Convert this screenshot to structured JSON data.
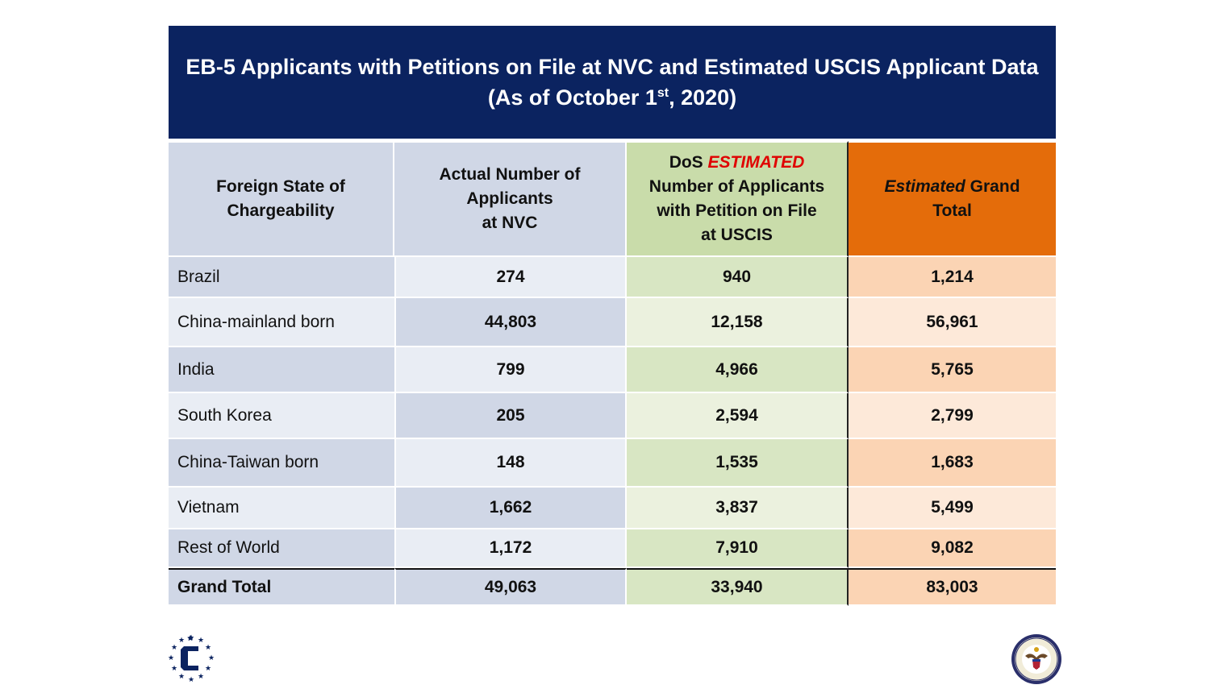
{
  "banner": {
    "title_line1": "EB-5 Applicants with Petitions on File at NVC and Estimated USCIS Applicant Data",
    "title_line2_prefix": "(As of October 1",
    "title_line2_sup": "st",
    "title_line2_suffix": ", 2020)"
  },
  "table": {
    "headers": {
      "state_line1": "Foreign State of",
      "state_line2": "Chargeability",
      "actual_line1": "Actual Number of",
      "actual_line2": "Applicants",
      "actual_line3": "at NVC",
      "dos_prefix": "DoS ",
      "dos_emph": "ESTIMATED",
      "dos_line2": "Number of Applicants",
      "dos_line3": "with Petition on File",
      "dos_line4": "at USCIS",
      "total_emph": "Estimated",
      "total_rest": " Grand",
      "total_line2": "Total"
    },
    "rows": [
      {
        "state": "Brazil",
        "actual": "274",
        "dos": "940",
        "total": "1,214"
      },
      {
        "state": "China-mainland born",
        "actual": "44,803",
        "dos": "12,158",
        "total": "56,961"
      },
      {
        "state": "India",
        "actual": "799",
        "dos": "4,966",
        "total": "5,765"
      },
      {
        "state": "South Korea",
        "actual": "205",
        "dos": "2,594",
        "total": "2,799"
      },
      {
        "state": "China-Taiwan born",
        "actual": "148",
        "dos": "1,535",
        "total": "1,683"
      },
      {
        "state": "Vietnam",
        "actual": "1,662",
        "dos": "3,837",
        "total": "5,499"
      },
      {
        "state": "Rest of World",
        "actual": "1,172",
        "dos": "7,910",
        "total": "9,082"
      }
    ],
    "grand_total": {
      "state": "Grand Total",
      "actual": "49,063",
      "dos": "33,940",
      "total": "83,003"
    }
  },
  "logos": {
    "left": "c-star-logo-icon",
    "right": "state-department-seal-icon"
  },
  "colors": {
    "banner": "#0b2360",
    "header_blue": "#d0d7e6",
    "header_green": "#c9dcaa",
    "header_orange": "#e46c0a",
    "estimated_red": "#e00000"
  }
}
